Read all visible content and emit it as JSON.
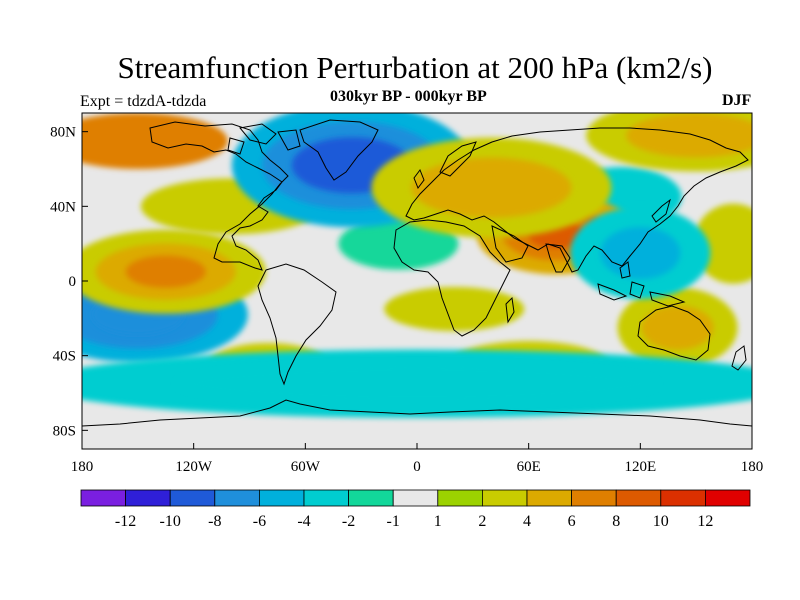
{
  "title": "Streamfunction Perturbation at 200 hPa (km2/s)",
  "left_label": "Expt = tdzdA-tdzda",
  "center_label": "030kyr BP - 000kyr BP",
  "right_label": "DJF",
  "chart_data": {
    "type": "heatmap",
    "projection": "cylindrical-equidistant",
    "variable": "Streamfunction Perturbation at 200 hPa",
    "units": "km2/s",
    "season": "DJF",
    "experiment": "tdzdA-tdzda",
    "comparison": "030kyr BP - 000kyr BP",
    "xlim": [
      -180,
      180
    ],
    "ylim": [
      -90,
      90
    ],
    "lon_ticks": [
      {
        "value": -180,
        "label": "180"
      },
      {
        "value": -120,
        "label": "120W"
      },
      {
        "value": -60,
        "label": "60W"
      },
      {
        "value": 0,
        "label": "0"
      },
      {
        "value": 60,
        "label": "60E"
      },
      {
        "value": 120,
        "label": "120E"
      },
      {
        "value": 180,
        "label": "180"
      }
    ],
    "lat_ticks": [
      {
        "value": 80,
        "label": "80N"
      },
      {
        "value": 40,
        "label": "40N"
      },
      {
        "value": 0,
        "label": "0"
      },
      {
        "value": -40,
        "label": "40S"
      },
      {
        "value": -80,
        "label": "80S"
      }
    ],
    "colorbar": {
      "colors": [
        "#7a1fe0",
        "#2f1fd8",
        "#1f5ad8",
        "#1f8fdb",
        "#00b0dc",
        "#00cdd0",
        "#12d79a",
        "#e8e8e8",
        "#9cd200",
        "#c9cc00",
        "#dcaa00",
        "#df7f00",
        "#dd5a00",
        "#db3000",
        "#e00000"
      ],
      "tick_labels": [
        "-12",
        "-10",
        "-8",
        "-6",
        "-4",
        "-2",
        "-1",
        "1",
        "2",
        "4",
        "6",
        "8",
        "10",
        "12"
      ]
    },
    "features": [
      {
        "name": "North Atlantic / Greenland low",
        "lon": -35,
        "lat": 62,
        "value": -9
      },
      {
        "name": "South Pacific low",
        "lon": -150,
        "lat": -18,
        "value": -8
      },
      {
        "name": "Tropical East Pacific high",
        "lon": -135,
        "lat": 5,
        "value": 7
      },
      {
        "name": "Tibetan Plateau high",
        "lon": 75,
        "lat": 25,
        "value": 8
      },
      {
        "name": "Eurasian high",
        "lon": 40,
        "lat": 50,
        "value": 4
      },
      {
        "name": "Arctic Siberia high",
        "lon": 150,
        "lat": 78,
        "value": 4
      },
      {
        "name": "Australia high",
        "lon": 140,
        "lat": -25,
        "value": 5
      },
      {
        "name": "Southeast Asia / western Pacific low",
        "lon": 120,
        "lat": 15,
        "value": -5
      },
      {
        "name": "Southern Ocean wave train",
        "lon": 0,
        "lat": -55,
        "value": -3
      }
    ]
  }
}
